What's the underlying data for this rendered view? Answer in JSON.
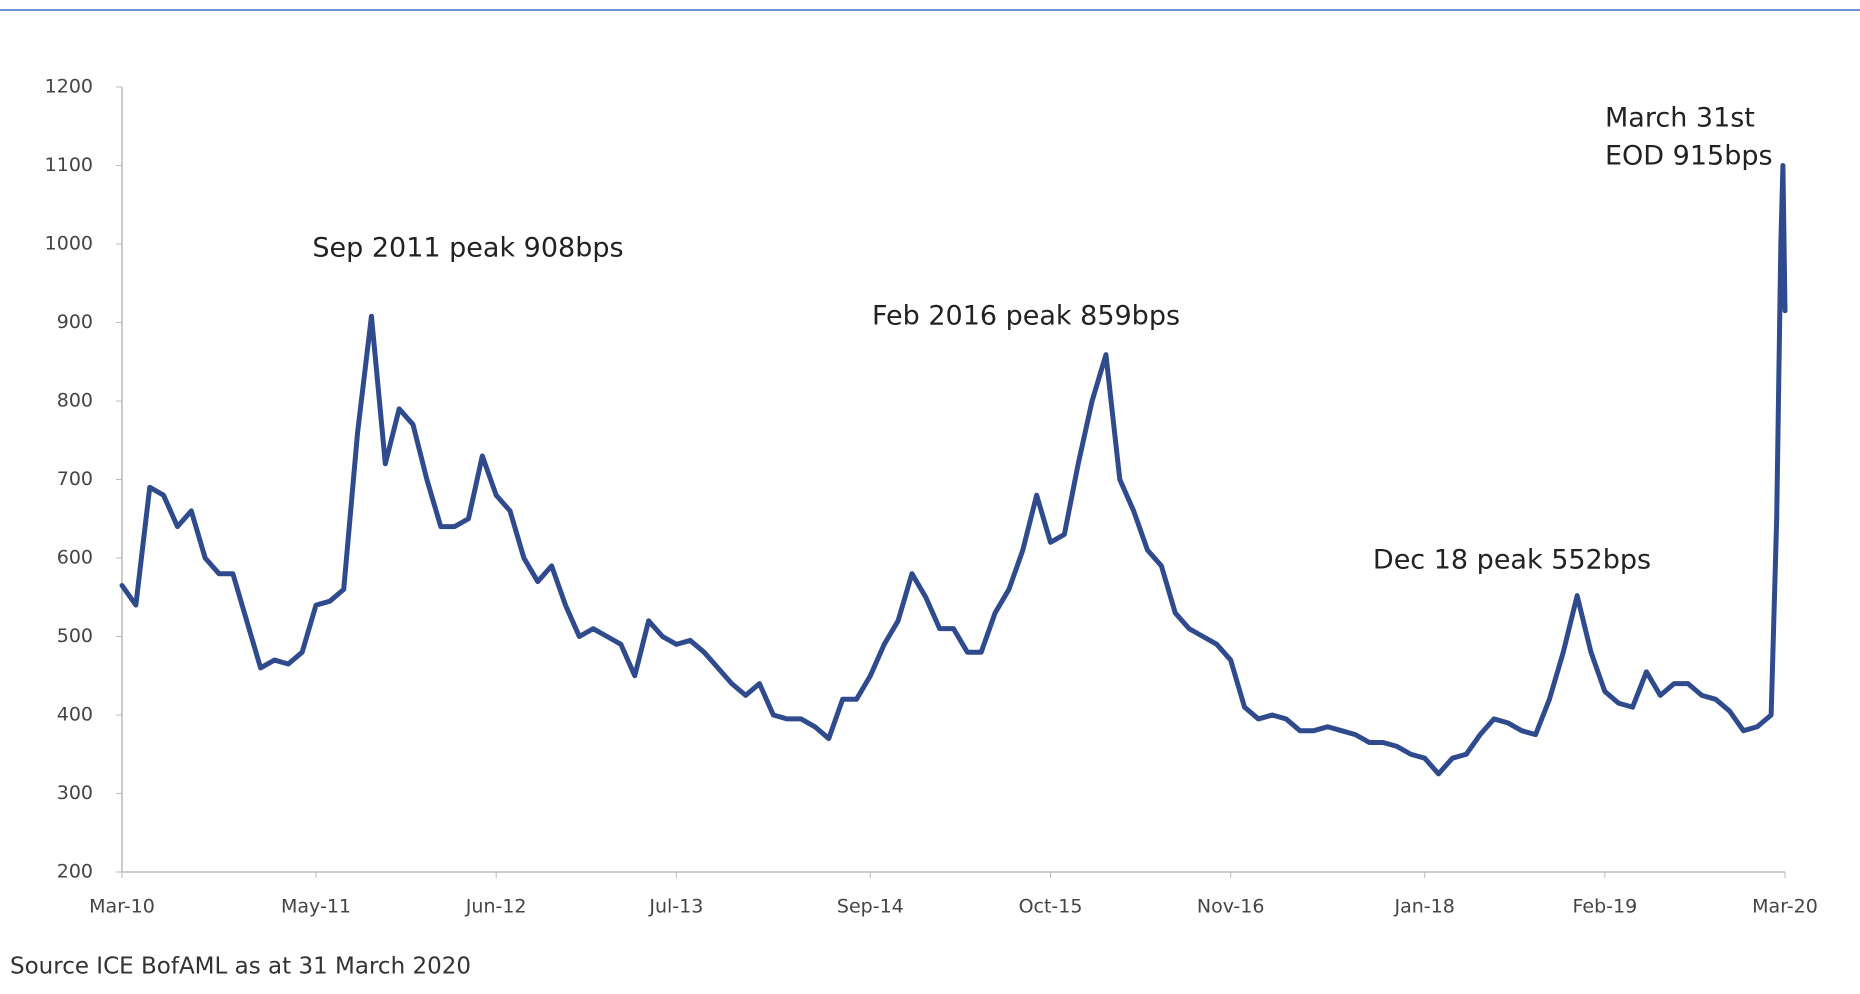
{
  "chart_data": {
    "type": "line",
    "annotations": [
      "Sep 2011 peak 908bps",
      "Feb 2016 peak 859bps",
      "Dec 18 peak 552bps",
      "March 31st",
      "EOD 915bps"
    ],
    "source": "Source ICE BofAML as at 31 March 2020",
    "x": [
      0,
      1,
      2,
      3,
      4,
      5,
      6,
      7,
      8,
      9,
      10,
      11,
      12,
      13,
      14,
      15,
      16,
      17,
      18,
      19,
      20,
      21,
      22,
      23,
      24,
      25,
      26,
      27,
      28,
      29,
      30,
      31,
      32,
      33,
      34,
      35,
      36,
      37,
      38,
      39,
      40,
      41,
      42,
      43,
      44,
      45,
      46,
      47,
      48,
      49,
      50,
      51,
      52,
      53,
      54,
      55,
      56,
      57,
      58,
      59,
      60,
      61,
      62,
      63,
      64,
      65,
      66,
      67,
      68,
      69,
      70,
      71,
      72,
      73,
      74,
      75,
      76,
      77,
      78,
      79,
      80,
      81,
      82,
      83,
      84,
      85,
      86,
      87,
      88,
      89,
      90,
      91,
      92,
      93,
      94,
      95,
      96,
      97,
      98,
      99,
      100,
      101,
      102,
      103,
      104,
      105,
      106,
      107,
      108,
      109,
      110,
      111,
      112,
      113,
      114,
      115,
      116,
      117,
      118,
      119,
      119.4,
      119.7,
      119.85,
      120
    ],
    "series": [
      {
        "color": "#2f4b8e",
        "values": [
          565,
          540,
          690,
          680,
          640,
          660,
          600,
          580,
          580,
          520,
          460,
          470,
          465,
          480,
          540,
          545,
          560,
          760,
          908,
          720,
          790,
          770,
          700,
          640,
          640,
          650,
          730,
          680,
          660,
          600,
          570,
          590,
          540,
          500,
          510,
          500,
          490,
          450,
          520,
          500,
          490,
          495,
          480,
          460,
          440,
          425,
          440,
          400,
          395,
          395,
          385,
          370,
          420,
          420,
          450,
          490,
          520,
          580,
          550,
          510,
          510,
          480,
          480,
          530,
          560,
          610,
          680,
          620,
          630,
          720,
          800,
          859,
          700,
          660,
          610,
          590,
          530,
          510,
          500,
          490,
          470,
          410,
          395,
          400,
          395,
          380,
          380,
          385,
          380,
          375,
          365,
          365,
          360,
          350,
          345,
          325,
          345,
          350,
          375,
          395,
          390,
          380,
          375,
          420,
          480,
          552,
          480,
          430,
          415,
          410,
          455,
          425,
          440,
          440,
          425,
          420,
          405,
          380,
          385,
          400,
          650,
          1000,
          1100,
          915
        ]
      }
    ],
    "xlim": [
      0,
      120
    ],
    "xticks": [
      {
        "value": 0,
        "label": "Mar-10"
      },
      {
        "value": 14,
        "label": "May-11"
      },
      {
        "value": 27,
        "label": "Jun-12"
      },
      {
        "value": 40,
        "label": "Jul-13"
      },
      {
        "value": 54,
        "label": "Sep-14"
      },
      {
        "value": 67,
        "label": "Oct-15"
      },
      {
        "value": 80,
        "label": "Nov-16"
      },
      {
        "value": 94,
        "label": "Jan-18"
      },
      {
        "value": 107,
        "label": "Feb-19"
      },
      {
        "value": 120,
        "label": "Mar-20"
      }
    ],
    "ylim": [
      200,
      1200
    ],
    "yticks": [
      200,
      300,
      400,
      500,
      600,
      700,
      800,
      900,
      1000,
      1100,
      1200
    ],
    "grid": false
  }
}
